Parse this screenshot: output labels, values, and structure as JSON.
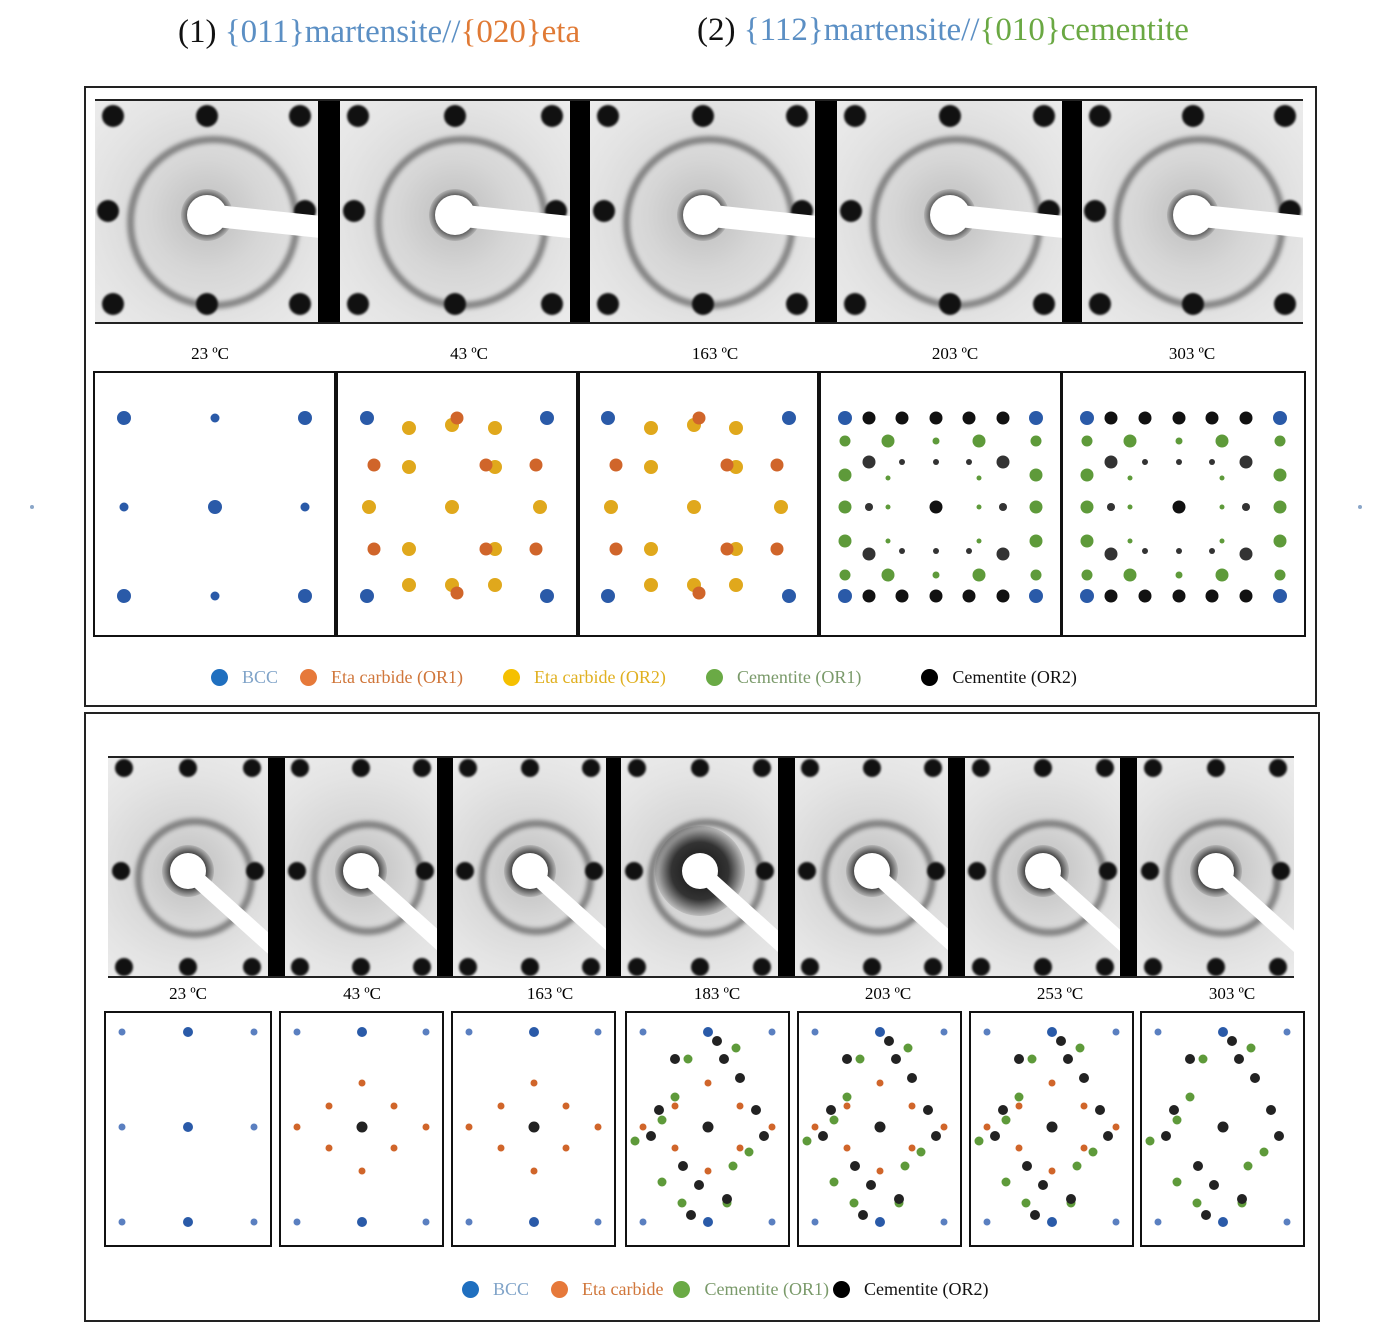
{
  "titles": [
    {
      "prefix": "(1) ",
      "parts": [
        {
          "text": "{011}martensite",
          "color": "#5b8fc4"
        },
        {
          "text": "//",
          "color": "#5b8fc4"
        },
        {
          "text": "{020}eta",
          "color": "#e07a35"
        }
      ]
    },
    {
      "prefix": "(2) ",
      "parts": [
        {
          "text": "{112}martensite",
          "color": "#5b8fc4"
        },
        {
          "text": "//",
          "color": "#5b8fc4"
        },
        {
          "text": "{010}cementite",
          "color": "#6aa843"
        }
      ]
    }
  ],
  "colors": {
    "bcc": "#2a5aa8",
    "eta_or1": "#d0652a",
    "eta_or2": "#e0a81c",
    "cementite_or1": "#5e9a3a",
    "cementite_or2": "#111111"
  },
  "panel1": {
    "temperatures": [
      "23 ºC",
      "43 ºC",
      "163 ºC",
      "203 ºC",
      "303 ºC"
    ],
    "patterns": [
      "BCC",
      "BCC+Eta",
      "BCC+Eta",
      "BCC+Cementite",
      "BCC+Cementite"
    ],
    "legend": [
      {
        "label": "BCC",
        "dot": "#1f6fbf",
        "text_color": "#7fa3c8"
      },
      {
        "label": "Eta carbide (OR1)",
        "dot": "#e6793a",
        "text_color": "#d0763a"
      },
      {
        "label": "Eta carbide (OR2)",
        "dot": "#f5c000",
        "text_color": "#e0b020"
      },
      {
        "label": "Cementite (OR1)",
        "dot": "#6aaa45",
        "text_color": "#7a9a6a"
      },
      {
        "label": "Cementite (OR2)",
        "dot": "#000000",
        "text_color": "#111111"
      }
    ]
  },
  "panel2": {
    "temperatures": [
      "23 ºC",
      "43 ºC",
      "163 ºC",
      "183 ºC",
      "203 ºC",
      "253 ºC",
      "303 ºC"
    ],
    "patterns": [
      "BCC",
      "BCC+Eta",
      "BCC+Eta",
      "BCC+Eta+Cementite",
      "BCC+Eta+Cementite",
      "BCC+Eta+Cementite",
      "BCC+Cementite"
    ],
    "legend": [
      {
        "label": "BCC",
        "dot": "#1f6fbf",
        "text_color": "#7fa3c8"
      },
      {
        "label": "Eta carbide",
        "dot": "#e6793a",
        "text_color": "#d0763a"
      },
      {
        "label": "Cementite (OR1)",
        "dot": "#6aaa45",
        "text_color": "#7a9a6a"
      },
      {
        "label": "Cementite (OR2)",
        "dot": "#000000",
        "text_color": "#111111"
      }
    ]
  }
}
